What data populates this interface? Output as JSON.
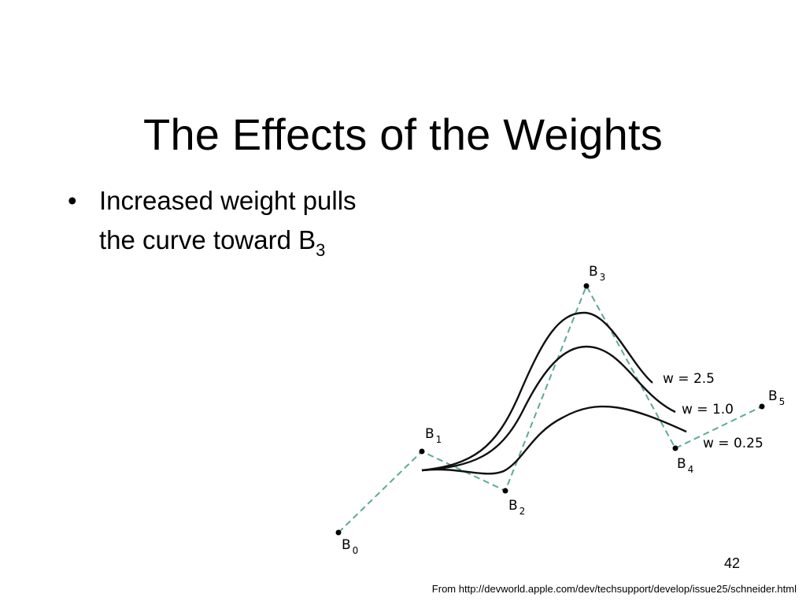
{
  "slide": {
    "title": "The Effects of the Weights",
    "bullet": {
      "marker": "•",
      "text": "Increased weight pulls the curve toward B",
      "subscript": "3"
    },
    "page_number": "42",
    "footer": "From http://devworld.apple.com/dev/techsupport/develop/issue25/schneider.html"
  },
  "diagram": {
    "control_points": [
      {
        "name": "B",
        "sub": "0"
      },
      {
        "name": "B",
        "sub": "1"
      },
      {
        "name": "B",
        "sub": "2"
      },
      {
        "name": "B",
        "sub": "3"
      },
      {
        "name": "B",
        "sub": "4"
      },
      {
        "name": "B",
        "sub": "5"
      }
    ],
    "curves": [
      {
        "label": "w = 2.5"
      },
      {
        "label": "w = 1.0"
      },
      {
        "label": "w = 0.25"
      }
    ],
    "polygon_color": "#5fa89a",
    "curve_color": "#111111"
  }
}
